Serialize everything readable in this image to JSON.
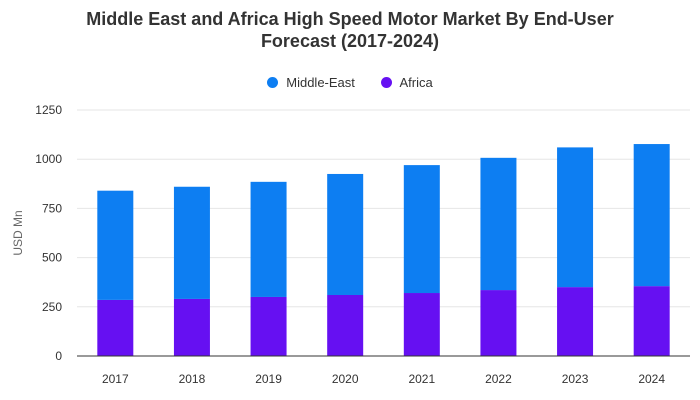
{
  "chart_data": {
    "type": "bar",
    "stacked": true,
    "title_line1": "Middle East and Africa High Speed Motor Market By End-User",
    "title_line2": "Forecast (2017-2024)",
    "xlabel": "",
    "ylabel": "USD Mn",
    "ylim": [
      0,
      1250
    ],
    "yticks": [
      0,
      250,
      500,
      750,
      1000,
      1250
    ],
    "ytick_labels": [
      "0",
      "250",
      "500",
      "750",
      "1000",
      "1250"
    ],
    "grid": true,
    "legend_position": "top-center",
    "categories": [
      "2017",
      "2018",
      "2019",
      "2020",
      "2021",
      "2022",
      "2023",
      "2024"
    ],
    "series": [
      {
        "name": "Africa",
        "color": "#6610f2",
        "values": [
          285,
          290,
          300,
          310,
          320,
          335,
          350,
          355
        ]
      },
      {
        "name": "Middle-East",
        "color": "#0d7ef2",
        "values": [
          555,
          570,
          585,
          615,
          650,
          672,
          710,
          722
        ]
      }
    ]
  },
  "legend": {
    "items": [
      {
        "label": "Middle-East",
        "color": "#0d7ef2"
      },
      {
        "label": "Africa",
        "color": "#6610f2"
      }
    ]
  }
}
